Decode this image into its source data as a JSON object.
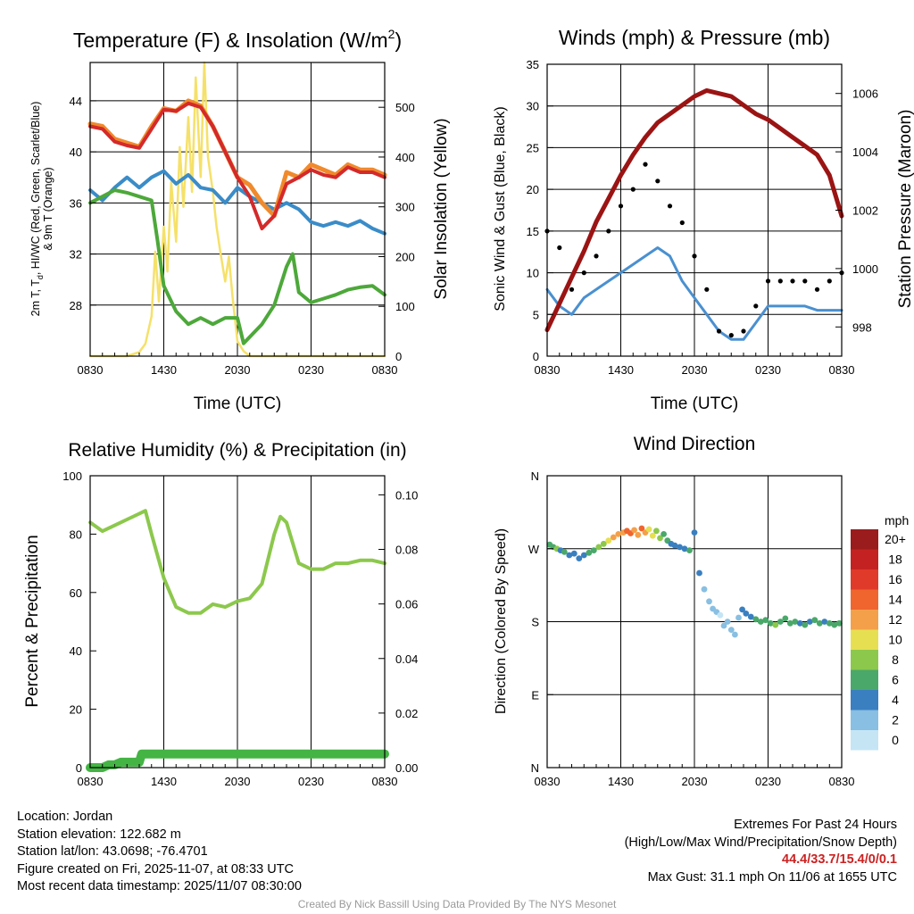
{
  "colors": {
    "t2m": "#d42a2a",
    "t9m": "#f08a2c",
    "dew": "#4da83a",
    "hiwc": "#3a8cc8",
    "solar": "#f5e16a",
    "wind": "#4a90d0",
    "gust": "#000000",
    "pressure": "#9b1414",
    "rh": "#8cc84c",
    "precip": "#44b444",
    "extremes": "#cc2222",
    "credit": "#9a9a9a"
  },
  "panels": {
    "temp": {
      "title": "Temperature (F) & Insolation (W/m",
      "title_sup": "2",
      "title_close": ")",
      "left_label_line1": "2m T, T",
      "left_label_sub": "d",
      "left_label_line1b": ", HI/WC (Red, Green, Scarlet/Blue)",
      "left_label_line2": "& 9m T (Orange)",
      "right_label": "Solar Insolation (Yellow)",
      "xlabel": "Time (UTC)"
    },
    "wind": {
      "title": "Winds (mph) & Pressure (mb)",
      "left_label": "Sonic Wind & Gust (Blue, Black)",
      "right_label": "Station Pressure (Maroon)",
      "xlabel": "Time (UTC)"
    },
    "rh": {
      "title": "Relative Humidity (%) & Precipitation (in)",
      "left_label": "Percent & Precipitation"
    },
    "dir": {
      "title": "Wind Direction",
      "left_label": "Direction (Colored By Speed)",
      "legend_title": "mph"
    }
  },
  "chart_data": [
    {
      "id": "temp",
      "type": "line",
      "title": "Temperature (F) & Insolation (W/m2)",
      "xlabel": "Time (UTC)",
      "ylabel": "2m T, Td, HI/WC (Red, Green, Scarlet/Blue) & 9m T (Orange)",
      "y2label": "Solar Insolation (Yellow)",
      "x_ticks": [
        "0830",
        "1430",
        "2030",
        "0230",
        "0830"
      ],
      "x_hours": [
        0,
        6,
        12,
        18,
        24
      ],
      "xlim": [
        0,
        24
      ],
      "ylim": [
        24,
        47
      ],
      "y_ticks": [
        28,
        32,
        36,
        40,
        44
      ],
      "y2lim": [
        0,
        590
      ],
      "y2_ticks": [
        0,
        100,
        200,
        300,
        400,
        500
      ],
      "series": [
        {
          "name": "9m T",
          "color": "#f08a2c",
          "width": 5,
          "x": [
            0,
            1,
            2,
            3,
            4,
            5,
            6,
            7,
            8,
            9,
            10,
            11,
            12,
            13,
            14,
            15,
            16,
            17,
            18,
            19,
            20,
            21,
            22,
            23,
            24
          ],
          "y": [
            42.2,
            42,
            41,
            40.7,
            40.4,
            42,
            43.4,
            43.2,
            44,
            43.6,
            42,
            40,
            38,
            37.4,
            36,
            35,
            38.4,
            38,
            39,
            38.6,
            38.2,
            39,
            38.6,
            38.6,
            38.2
          ]
        },
        {
          "name": "2m T",
          "color": "#d42a2a",
          "width": 4,
          "x": [
            0,
            1,
            2,
            3,
            4,
            5,
            6,
            7,
            8,
            9,
            10,
            11,
            12,
            13,
            14,
            15,
            16,
            17,
            18,
            19,
            20,
            21,
            22,
            23,
            24
          ],
          "y": [
            42,
            41.8,
            40.8,
            40.5,
            40.3,
            41.8,
            43.3,
            43.2,
            43.8,
            43.5,
            42,
            40,
            38,
            36.5,
            34,
            35,
            37.5,
            38,
            38.6,
            38.2,
            38,
            38.8,
            38.4,
            38.4,
            38
          ]
        },
        {
          "name": "HI/WC",
          "color": "#3a8cc8",
          "width": 4,
          "x": [
            0,
            1,
            2,
            3,
            4,
            5,
            6,
            7,
            8,
            9,
            10,
            11,
            12,
            13,
            14,
            15,
            16,
            17,
            18,
            19,
            20,
            21,
            22,
            23,
            24
          ],
          "y": [
            37,
            36.2,
            37.2,
            38,
            37.2,
            38,
            38.5,
            37.5,
            38.2,
            37.2,
            37,
            36,
            37.2,
            36.5,
            36,
            35.5,
            36,
            35.5,
            34.5,
            34.2,
            34.5,
            34.2,
            34.6,
            34,
            33.6
          ]
        },
        {
          "name": "Td",
          "color": "#4da83a",
          "width": 4,
          "x": [
            0,
            1,
            2,
            3,
            4,
            5,
            5.5,
            6,
            7,
            8,
            9,
            10,
            11,
            12,
            12.5,
            13,
            14,
            15,
            16,
            16.5,
            17,
            18,
            19,
            20,
            21,
            22,
            23,
            24
          ],
          "y": [
            36,
            36.5,
            37,
            36.8,
            36.5,
            36.2,
            33,
            29.5,
            27.5,
            26.5,
            27,
            26.5,
            27,
            27,
            25,
            25.5,
            26.5,
            28,
            31,
            32,
            29,
            28.2,
            28.5,
            28.8,
            29.2,
            29.4,
            29.5,
            28.8
          ]
        },
        {
          "name": "Solar",
          "color": "#f5e16a",
          "width": 2.5,
          "axis": "right",
          "x": [
            0,
            2,
            3,
            4,
            4.5,
            5,
            5.3,
            5.6,
            6,
            6.3,
            6.6,
            7,
            7.3,
            7.6,
            8,
            8.3,
            8.6,
            9,
            9.3,
            9.6,
            10,
            10.3,
            10.6,
            11,
            11.3,
            11.6,
            12,
            12.5,
            13,
            14,
            24
          ],
          "y": [
            0,
            0,
            0,
            8,
            25,
            80,
            210,
            110,
            260,
            170,
            350,
            230,
            420,
            300,
            480,
            330,
            560,
            360,
            590,
            400,
            330,
            260,
            210,
            150,
            200,
            120,
            30,
            10,
            0,
            0,
            0
          ]
        }
      ]
    },
    {
      "id": "wind",
      "type": "line",
      "title": "Winds (mph) & Pressure (mb)",
      "xlabel": "Time (UTC)",
      "ylabel": "Sonic Wind & Gust (Blue, Black)",
      "y2label": "Station Pressure (Maroon)",
      "x_ticks": [
        "0830",
        "1430",
        "2030",
        "0230",
        "0830"
      ],
      "x_hours": [
        0,
        6,
        12,
        18,
        24
      ],
      "xlim": [
        0,
        24
      ],
      "ylim": [
        0,
        35
      ],
      "y_ticks": [
        0,
        5,
        10,
        15,
        20,
        25,
        30,
        35
      ],
      "y2lim": [
        997,
        1007
      ],
      "y2_ticks": [
        998,
        1000,
        1002,
        1004,
        1006
      ],
      "series": [
        {
          "name": "Sonic Wind",
          "color": "#4a90d0",
          "width": 3,
          "x": [
            0,
            1,
            2,
            3,
            4,
            5,
            6,
            7,
            8,
            9,
            10,
            11,
            12,
            13,
            14,
            15,
            16,
            17,
            18,
            19,
            20,
            21,
            22,
            23,
            24
          ],
          "y": [
            8,
            6,
            5,
            7,
            8,
            9,
            10,
            11,
            12,
            13,
            12,
            9,
            7,
            5,
            3,
            2,
            2,
            4,
            6,
            6,
            6,
            6,
            5.5,
            5.5,
            5.5
          ]
        },
        {
          "name": "Gust",
          "color": "#000000",
          "type": "scatter",
          "x": [
            0,
            1,
            2,
            3,
            4,
            5,
            6,
            7,
            8,
            9,
            10,
            11,
            12,
            13,
            14,
            15,
            16,
            17,
            18,
            19,
            20,
            21,
            22,
            23,
            24
          ],
          "y": [
            15,
            13,
            8,
            10,
            12,
            15,
            18,
            20,
            23,
            21,
            18,
            16,
            12,
            8,
            3,
            2.5,
            3,
            6,
            9,
            9,
            9,
            9,
            8,
            9,
            10
          ]
        },
        {
          "name": "Station Pressure",
          "color": "#9b1414",
          "width": 5,
          "axis": "right",
          "x": [
            0,
            1,
            2,
            3,
            4,
            5,
            6,
            7,
            8,
            9,
            10,
            11,
            12,
            13,
            14,
            15,
            16,
            17,
            18,
            19,
            20,
            21,
            22,
            23,
            24
          ],
          "y": [
            997.9,
            998.8,
            999.7,
            1000.6,
            1001.6,
            1002.4,
            1003.2,
            1003.9,
            1004.5,
            1005,
            1005.3,
            1005.6,
            1005.9,
            1006.1,
            1006,
            1005.9,
            1005.6,
            1005.3,
            1005.1,
            1004.8,
            1004.5,
            1004.2,
            1003.9,
            1003.2,
            1001.8
          ]
        }
      ]
    },
    {
      "id": "rh",
      "type": "line",
      "title": "Relative Humidity (%) & Precipitation (in)",
      "ylabel": "Percent & Precipitation",
      "x_ticks": [
        "0830",
        "1430",
        "2030",
        "0230",
        "0830"
      ],
      "x_hours": [
        0,
        6,
        12,
        18,
        24
      ],
      "xlim": [
        0,
        24
      ],
      "ylim": [
        0,
        100
      ],
      "y_ticks": [
        0,
        20,
        40,
        60,
        80,
        100
      ],
      "y2lim": [
        0,
        0.107
      ],
      "y2_ticks": [
        0.0,
        0.02,
        0.04,
        0.06,
        0.08,
        0.1
      ],
      "series": [
        {
          "name": "Relative Humidity",
          "color": "#8cc84c",
          "width": 4,
          "x": [
            0,
            1,
            2,
            3,
            4,
            4.5,
            5,
            6,
            7,
            8,
            9,
            10,
            11,
            12,
            13,
            14,
            15,
            15.5,
            16,
            17,
            18,
            19,
            20,
            21,
            22,
            23,
            24
          ],
          "y": [
            84,
            81,
            83,
            85,
            87,
            88,
            80,
            65,
            55,
            53,
            53,
            56,
            55,
            57,
            58,
            63,
            80,
            86,
            84,
            70,
            68,
            68,
            70,
            70,
            71,
            71,
            70
          ]
        },
        {
          "name": "Precipitation",
          "color": "#44b444",
          "width": 10,
          "axis": "right",
          "x": [
            0,
            1,
            1.5,
            2,
            2.5,
            4,
            4.2,
            24
          ],
          "y": [
            0,
            0,
            0.001,
            0.001,
            0.002,
            0.002,
            0.005,
            0.005
          ]
        }
      ]
    },
    {
      "id": "dir",
      "type": "scatter",
      "title": "Wind Direction",
      "ylabel": "Direction (Colored By Speed)",
      "x_ticks": [
        "0830",
        "1430",
        "2030",
        "0230",
        "0830"
      ],
      "x_hours": [
        0,
        6,
        12,
        18,
        24
      ],
      "xlim": [
        0,
        24
      ],
      "ylim": [
        0,
        360
      ],
      "y_ticks": [
        0,
        90,
        180,
        270,
        360
      ],
      "y_tick_labels": [
        "N",
        "E",
        "S",
        "W",
        "N"
      ],
      "legend": {
        "title": "mph",
        "labels": [
          "20+",
          "18",
          "16",
          "14",
          "12",
          "10",
          "8",
          "6",
          "4",
          "2",
          "0"
        ],
        "colors": [
          "#9b1c1c",
          "#c42222",
          "#e03a2a",
          "#f0652e",
          "#f4a04a",
          "#e6df52",
          "#8cc84c",
          "#4aa86a",
          "#3a7fc0",
          "#88bfe2",
          "#c5e5f5"
        ]
      },
      "points": {
        "hour": [
          0.2,
          0.5,
          0.8,
          1.1,
          1.4,
          1.8,
          2.2,
          2.6,
          3.0,
          3.4,
          3.8,
          4.2,
          4.6,
          5.0,
          5.4,
          5.8,
          6.2,
          6.5,
          6.8,
          7.1,
          7.4,
          7.7,
          8.0,
          8.3,
          8.6,
          8.9,
          9.2,
          9.5,
          9.8,
          10.1,
          10.4,
          10.8,
          11.2,
          11.6,
          12.0,
          12.4,
          12.8,
          13.2,
          13.5,
          13.8,
          14.1,
          14.4,
          14.7,
          15.0,
          15.3,
          15.6,
          15.9,
          16.2,
          16.6,
          17.0,
          17.4,
          17.8,
          18.2,
          18.6,
          19.0,
          19.4,
          19.8,
          20.2,
          20.6,
          21.0,
          21.4,
          21.8,
          22.2,
          22.6,
          23.0,
          23.4,
          23.8
        ],
        "dir": [
          275,
          272,
          270,
          268,
          266,
          262,
          264,
          258,
          262,
          265,
          268,
          272,
          276,
          280,
          284,
          288,
          290,
          292,
          289,
          293,
          287,
          295,
          290,
          294,
          286,
          292,
          283,
          288,
          280,
          276,
          274,
          272,
          270,
          268,
          290,
          240,
          220,
          205,
          196,
          192,
          188,
          175,
          180,
          170,
          164,
          185,
          195,
          190,
          186,
          183,
          180,
          182,
          178,
          176,
          180,
          184,
          178,
          180,
          178,
          176,
          180,
          182,
          178,
          180,
          178,
          176,
          178
        ],
        "speed": [
          5,
          6,
          7,
          4,
          5,
          4,
          3,
          4,
          4,
          5,
          6,
          7,
          8,
          10,
          11,
          12,
          12,
          13,
          13,
          12,
          11,
          14,
          12,
          10,
          9,
          8,
          7,
          6,
          5,
          4,
          3,
          4,
          3,
          5,
          4,
          3,
          2,
          1,
          1,
          1,
          0,
          1,
          2,
          1,
          1,
          2,
          3,
          4,
          4,
          5,
          6,
          5,
          6,
          7,
          5,
          6,
          5,
          5,
          4,
          5,
          4,
          5,
          5,
          4,
          6,
          5,
          5
        ]
      }
    }
  ],
  "info": {
    "location": "Location: Jordan",
    "elevation": "Station elevation: 122.682 m",
    "latlon": "Station lat/lon: 43.0698; -76.4701",
    "created": "Figure created on Fri, 2025-11-07, at 08:33 UTC",
    "recent": "Most recent data timestamp: 2025/11/07 08:30:00"
  },
  "extremes": {
    "title": "Extremes For Past 24 Hours",
    "subtitle": "(High/Low/Max Wind/Precipitation/Snow Depth)",
    "values": "44.4/33.7/15.4/0/0.1",
    "gust": "Max Gust: 31.1 mph On 11/06 at 1655 UTC"
  },
  "credit": "Created By Nick Bassill Using Data Provided By The NYS Mesonet"
}
